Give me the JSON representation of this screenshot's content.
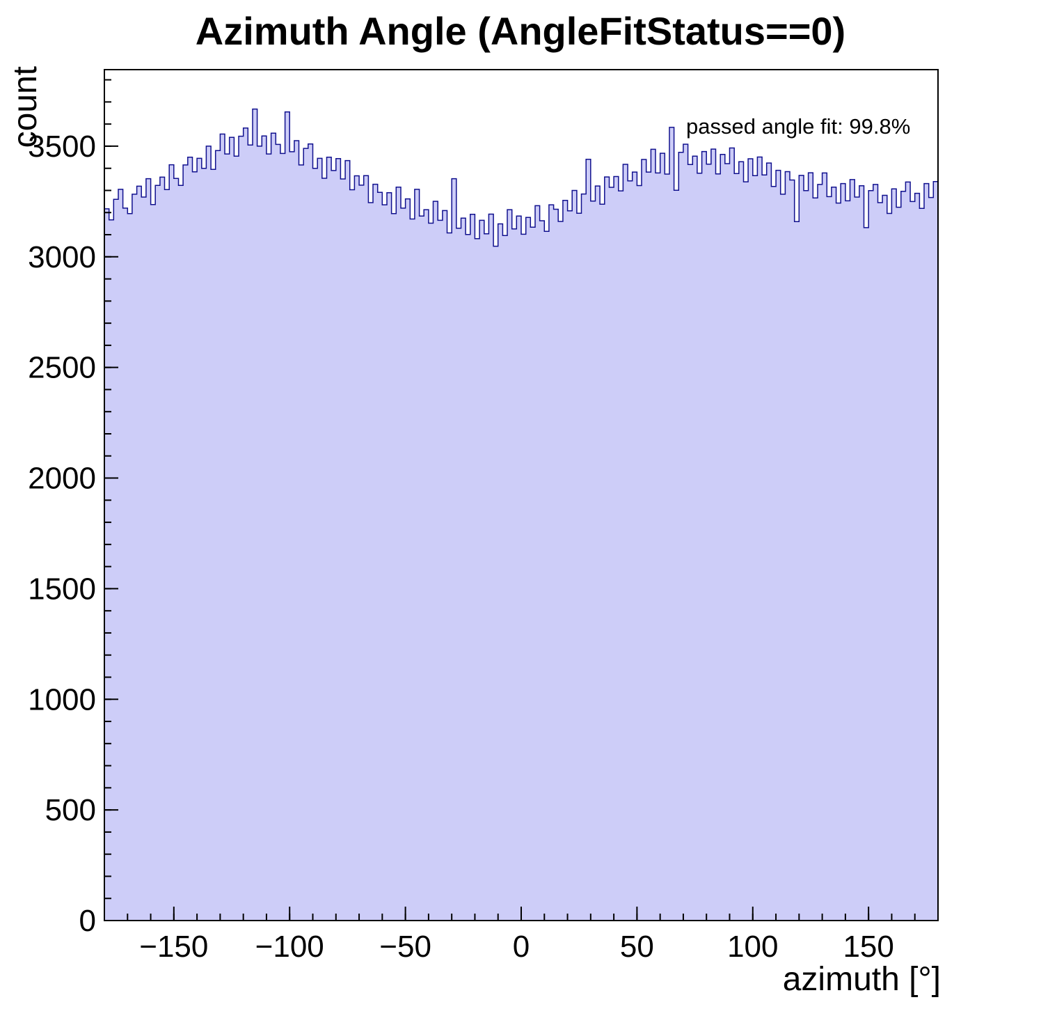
{
  "colors": {
    "hist_fill": "#cdcdf8",
    "hist_line": "#10108e",
    "axis": "#000000"
  },
  "chart_data": {
    "type": "bar",
    "title": "Azimuth Angle (AngleFitStatus==0)",
    "xlabel": "azimuth [°]",
    "ylabel": "count",
    "annotation": "passed angle fit: 99.8%",
    "xlim": [
      -180,
      180
    ],
    "ylim": [
      0,
      3846
    ],
    "bin_width": 2,
    "x_start": -180,
    "grid": false,
    "legend": "none",
    "xticks": {
      "major": [
        -150,
        -100,
        -50,
        0,
        50,
        100,
        150
      ],
      "minor_step": 10
    },
    "yticks": {
      "major": [
        0,
        500,
        1000,
        1500,
        2000,
        2500,
        3000,
        3500
      ],
      "minor_step": 100
    },
    "values": [
      3217,
      3167,
      3260,
      3305,
      3220,
      3195,
      3283,
      3319,
      3270,
      3353,
      3236,
      3323,
      3360,
      3304,
      3416,
      3354,
      3323,
      3415,
      3450,
      3384,
      3445,
      3400,
      3500,
      3395,
      3480,
      3555,
      3465,
      3540,
      3455,
      3545,
      3582,
      3505,
      3668,
      3500,
      3546,
      3465,
      3559,
      3508,
      3467,
      3655,
      3475,
      3525,
      3415,
      3490,
      3510,
      3400,
      3445,
      3355,
      3450,
      3390,
      3444,
      3352,
      3435,
      3303,
      3366,
      3324,
      3367,
      3245,
      3328,
      3291,
      3235,
      3290,
      3195,
      3315,
      3220,
      3262,
      3171,
      3305,
      3184,
      3213,
      3152,
      3251,
      3165,
      3209,
      3108,
      3353,
      3129,
      3175,
      3101,
      3192,
      3082,
      3165,
      3104,
      3193,
      3048,
      3149,
      3096,
      3213,
      3126,
      3184,
      3102,
      3178,
      3134,
      3231,
      3163,
      3115,
      3235,
      3215,
      3160,
      3255,
      3208,
      3300,
      3197,
      3284,
      3441,
      3252,
      3320,
      3238,
      3361,
      3314,
      3363,
      3298,
      3418,
      3343,
      3383,
      3322,
      3440,
      3383,
      3486,
      3379,
      3468,
      3374,
      3585,
      3301,
      3472,
      3509,
      3417,
      3455,
      3378,
      3476,
      3419,
      3487,
      3375,
      3463,
      3421,
      3492,
      3376,
      3430,
      3339,
      3443,
      3367,
      3451,
      3370,
      3424,
      3318,
      3391,
      3283,
      3385,
      3347,
      3159,
      3368,
      3299,
      3380,
      3266,
      3327,
      3379,
      3272,
      3315,
      3243,
      3331,
      3253,
      3349,
      3270,
      3321,
      3132,
      3299,
      3327,
      3245,
      3278,
      3196,
      3307,
      3224,
      3296,
      3338,
      3250,
      3287,
      3219,
      3331,
      3268,
      3340
    ]
  }
}
